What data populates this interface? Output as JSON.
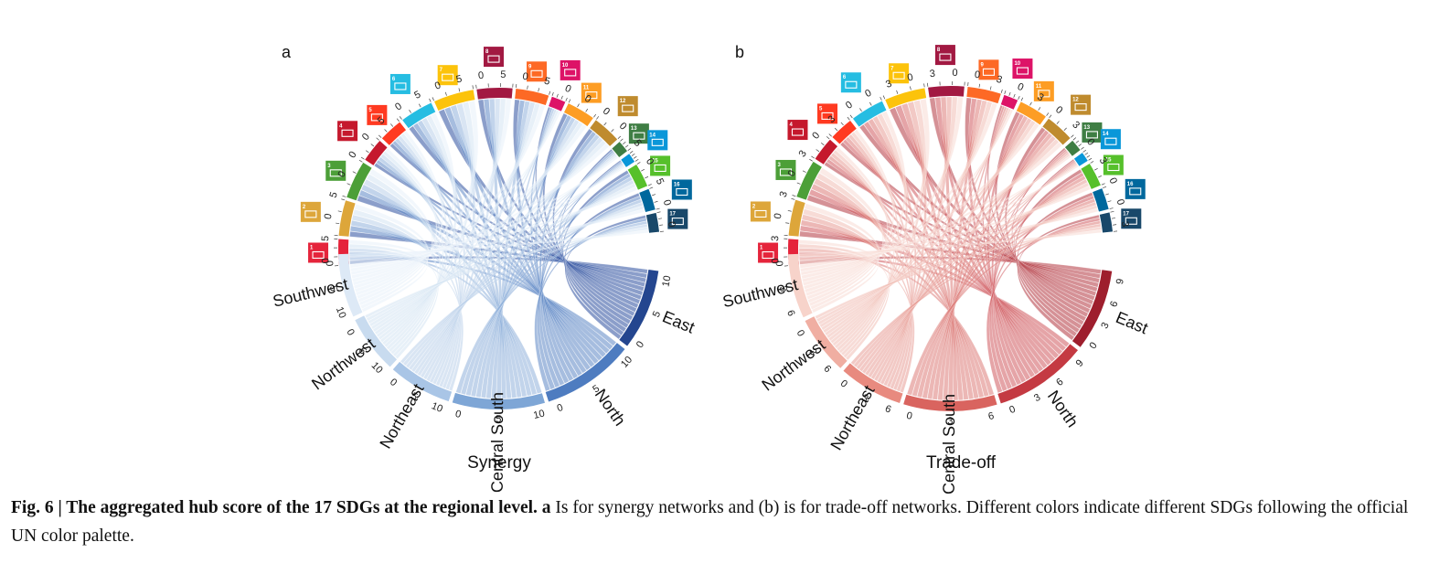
{
  "figure": {
    "panels": [
      {
        "letter": "a",
        "title": "Synergy",
        "regions": [
          "East",
          "North",
          "Central South",
          "Northeast",
          "Northwest",
          "Southwest"
        ],
        "region_tick_labels": [
          [
            "10",
            "5",
            "0"
          ],
          [
            "10",
            "5",
            "0"
          ],
          [
            "10",
            "5",
            "0"
          ],
          [
            "10",
            "5",
            "0"
          ],
          [
            "10",
            "5",
            "0"
          ],
          [
            "10",
            "5",
            "0"
          ]
        ],
        "sdg_tick_labels": [
          "0",
          "5",
          "0",
          "5",
          "0",
          "0",
          "0",
          "5",
          "0",
          "5",
          "0",
          "5",
          "0",
          "5",
          "0",
          "5",
          "0",
          "0",
          "0",
          "0",
          "5",
          "0",
          "5",
          "0",
          "0"
        ],
        "chord_palette": [
          "#2b4f9e",
          "#5c86c4",
          "#8fb1da",
          "#b9d0ea",
          "#d4e3f3",
          "#e8f0f9"
        ],
        "region_colors": [
          "#24468f",
          "#4e7cc0",
          "#7ea6d6",
          "#a9c5e6",
          "#c8dbef",
          "#dde9f6"
        ]
      },
      {
        "letter": "b",
        "title": "Trade-off",
        "regions": [
          "East",
          "North",
          "Central South",
          "Northeast",
          "Northwest",
          "Southwest"
        ],
        "region_tick_labels": [
          [
            "9",
            "6",
            "3",
            "0"
          ],
          [
            "9",
            "6",
            "3",
            "0"
          ],
          [
            "6",
            "3",
            "0"
          ],
          [
            "6",
            "3",
            "0"
          ],
          [
            "6",
            "3",
            "0"
          ],
          [
            "6",
            "3",
            "0"
          ]
        ],
        "sdg_tick_labels": [
          "0",
          "3",
          "0",
          "3",
          "0",
          "3",
          "0",
          "3",
          "0",
          "0",
          "3",
          "0",
          "3",
          "0",
          "0",
          "3",
          "0",
          "3",
          "0",
          "3",
          "0",
          "3",
          "0",
          "0",
          "3"
        ],
        "chord_palette": [
          "#b2363f",
          "#cf5a5e",
          "#dd7b78",
          "#e79c95",
          "#f0bdb4",
          "#f7dbd4"
        ],
        "region_colors": [
          "#9e1e2d",
          "#c43a42",
          "#d9645f",
          "#e88a7f",
          "#f0aea2",
          "#f7d3ca"
        ]
      }
    ],
    "sdgs": [
      {
        "number": "1",
        "color": "#e5243b",
        "icon": "people-icon"
      },
      {
        "number": "2",
        "color": "#dda63a",
        "icon": "bowl-icon"
      },
      {
        "number": "3",
        "color": "#4c9f38",
        "icon": "heartbeat-icon"
      },
      {
        "number": "4",
        "color": "#c5192d",
        "icon": "book-icon"
      },
      {
        "number": "5",
        "color": "#ff3a21",
        "icon": "gender-icon"
      },
      {
        "number": "6",
        "color": "#26bde2",
        "icon": "water-drop-icon"
      },
      {
        "number": "7",
        "color": "#fcc30b",
        "icon": "sun-icon"
      },
      {
        "number": "8",
        "color": "#a21942",
        "icon": "growth-chart-icon"
      },
      {
        "number": "9",
        "color": "#fd6925",
        "icon": "cubes-icon"
      },
      {
        "number": "10",
        "color": "#dd1367",
        "icon": "equality-icon"
      },
      {
        "number": "11",
        "color": "#fd9d24",
        "icon": "buildings-icon"
      },
      {
        "number": "12",
        "color": "#bf8b2e",
        "icon": "infinity-icon"
      },
      {
        "number": "13",
        "color": "#3f7e44",
        "icon": "eye-icon"
      },
      {
        "number": "14",
        "color": "#0a97d9",
        "icon": "fish-icon"
      },
      {
        "number": "15",
        "color": "#56c02b",
        "icon": "tree-icon"
      },
      {
        "number": "16",
        "color": "#00689d",
        "icon": "dove-icon"
      },
      {
        "number": "17",
        "color": "#19486a",
        "icon": "flower-icon"
      }
    ],
    "caption": {
      "label": "Fig. 6 | The aggregated hub score of the 17 SDGs at the regional level. a",
      "text": " Is for synergy networks and (b) is for trade-off networks. Different colors indicate different SDGs following the official UN color palette."
    }
  }
}
